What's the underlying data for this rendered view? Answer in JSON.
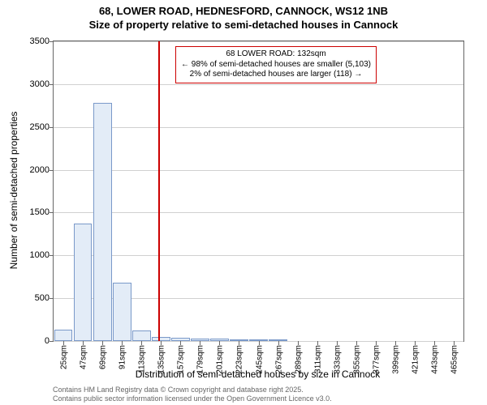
{
  "title": {
    "line1": "68, LOWER ROAD, HEDNESFORD, CANNOCK, WS12 1NB",
    "line2": "Size of property relative to semi-detached houses in Cannock"
  },
  "chart": {
    "type": "histogram",
    "ylabel": "Number of semi-detached properties",
    "xlabel": "Distribution of semi-detached houses by size in Cannock",
    "ylim": [
      0,
      3500
    ],
    "ytick_step": 500,
    "yticks": [
      0,
      500,
      1000,
      1500,
      2000,
      2500,
      3000,
      3500
    ],
    "xticks": [
      "25sqm",
      "47sqm",
      "69sqm",
      "91sqm",
      "113sqm",
      "135sqm",
      "157sqm",
      "179sqm",
      "201sqm",
      "223sqm",
      "245sqm",
      "267sqm",
      "289sqm",
      "311sqm",
      "333sqm",
      "355sqm",
      "377sqm",
      "399sqm",
      "421sqm",
      "443sqm",
      "465sqm"
    ],
    "bar_fill": "#e3ecf7",
    "bar_border": "#7a99c9",
    "grid_color": "#d0d0d0",
    "background_color": "#ffffff",
    "values": [
      130,
      1370,
      2780,
      680,
      120,
      50,
      35,
      30,
      25,
      10,
      5,
      3,
      2,
      2,
      1,
      1,
      1,
      0,
      0,
      0,
      0
    ],
    "marker": {
      "position_index": 4.85,
      "color": "#cc0000"
    },
    "annotation": {
      "line1": "68 LOWER ROAD: 132sqm",
      "line2": "← 98% of semi-detached houses are smaller (5,103)",
      "line3": "2% of semi-detached houses are larger (118) →"
    }
  },
  "footer": {
    "line1": "Contains HM Land Registry data © Crown copyright and database right 2025.",
    "line2": "Contains public sector information licensed under the Open Government Licence v3.0."
  }
}
